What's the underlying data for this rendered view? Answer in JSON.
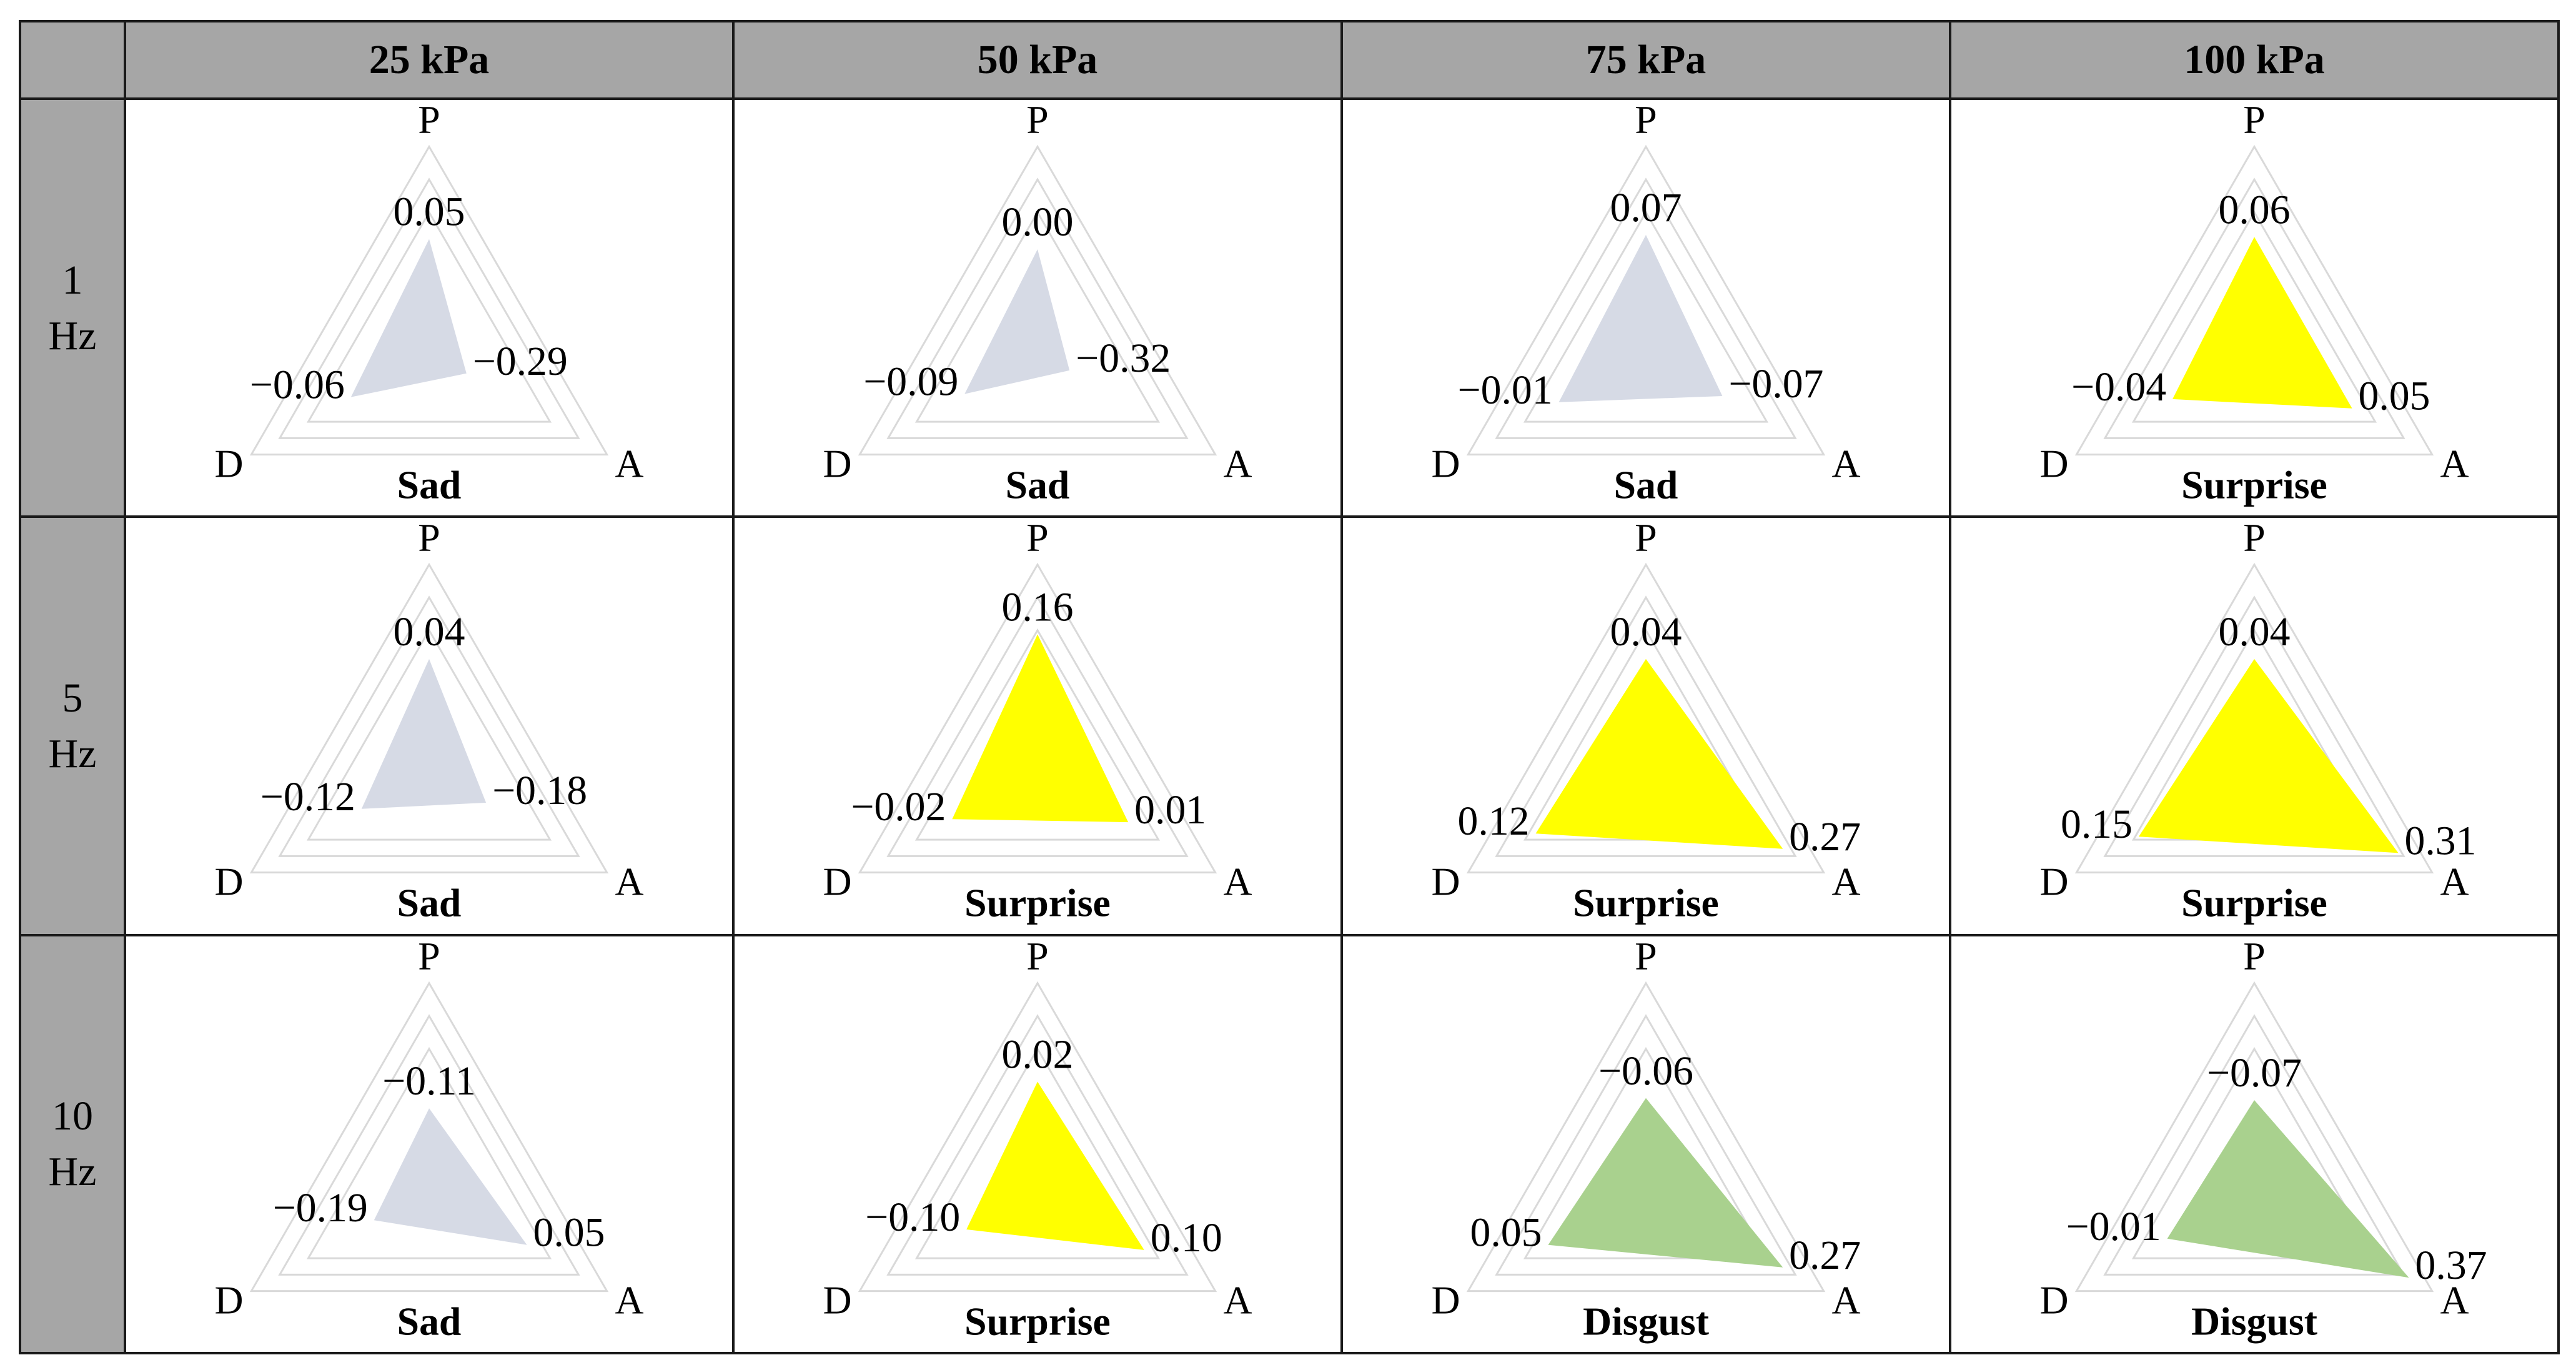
{
  "columns": [
    "25 kPa",
    "50 kPa",
    "75 kPa",
    "100 kPa"
  ],
  "rows": [
    {
      "label_num": "1",
      "label_unit": "Hz"
    },
    {
      "label_num": "5",
      "label_unit": "Hz"
    },
    {
      "label_num": "10",
      "label_unit": "Hz"
    }
  ],
  "axis_labels": {
    "P": "P",
    "A": "A",
    "D": "D"
  },
  "colors": {
    "Sad": "#d6dae5",
    "Surprise": "#ffff00",
    "Disgust": "#a9d18e",
    "grid": "#d9d9d9"
  },
  "chart_data": [
    {
      "type": "radar",
      "row": "1 Hz",
      "column": "25 kPa",
      "emotion": "Sad",
      "axes": [
        "P",
        "A",
        "D"
      ],
      "values": [
        0.05,
        -0.29,
        -0.06
      ],
      "value_labels": [
        "0.05",
        "−0.29",
        "−0.06"
      ]
    },
    {
      "type": "radar",
      "row": "1 Hz",
      "column": "50 kPa",
      "emotion": "Sad",
      "axes": [
        "P",
        "A",
        "D"
      ],
      "values": [
        0.0,
        -0.32,
        -0.09
      ],
      "value_labels": [
        "0.00",
        "−0.32",
        "−0.09"
      ]
    },
    {
      "type": "radar",
      "row": "1 Hz",
      "column": "75 kPa",
      "emotion": "Sad",
      "axes": [
        "P",
        "A",
        "D"
      ],
      "values": [
        0.07,
        -0.07,
        -0.01
      ],
      "value_labels": [
        "0.07",
        "−0.07",
        "−0.01"
      ]
    },
    {
      "type": "radar",
      "row": "1 Hz",
      "column": "100 kPa",
      "emotion": "Surprise",
      "axes": [
        "P",
        "A",
        "D"
      ],
      "values": [
        0.06,
        0.05,
        -0.04
      ],
      "value_labels": [
        "0.06",
        "0.05",
        "−0.04"
      ]
    },
    {
      "type": "radar",
      "row": "5 Hz",
      "column": "25 kPa",
      "emotion": "Sad",
      "axes": [
        "P",
        "A",
        "D"
      ],
      "values": [
        0.04,
        -0.18,
        -0.12
      ],
      "value_labels": [
        "0.04",
        "−0.18",
        "−0.12"
      ]
    },
    {
      "type": "radar",
      "row": "5 Hz",
      "column": "50 kPa",
      "emotion": "Surprise",
      "axes": [
        "P",
        "A",
        "D"
      ],
      "values": [
        0.16,
        0.01,
        -0.02
      ],
      "value_labels": [
        "0.16",
        "0.01",
        "−0.02"
      ]
    },
    {
      "type": "radar",
      "row": "5 Hz",
      "column": "75 kPa",
      "emotion": "Surprise",
      "axes": [
        "P",
        "A",
        "D"
      ],
      "values": [
        0.04,
        0.27,
        0.12
      ],
      "value_labels": [
        "0.04",
        "0.27",
        "0.12"
      ]
    },
    {
      "type": "radar",
      "row": "5 Hz",
      "column": "100 kPa",
      "emotion": "Surprise",
      "axes": [
        "P",
        "A",
        "D"
      ],
      "values": [
        0.04,
        0.31,
        0.15
      ],
      "value_labels": [
        "0.04",
        "0.31",
        "0.15"
      ]
    },
    {
      "type": "radar",
      "row": "10 Hz",
      "column": "25 kPa",
      "emotion": "Sad",
      "axes": [
        "P",
        "A",
        "D"
      ],
      "values": [
        -0.11,
        0.05,
        -0.19
      ],
      "value_labels": [
        "−0.11",
        "0.05",
        "−0.19"
      ]
    },
    {
      "type": "radar",
      "row": "10 Hz",
      "column": "50 kPa",
      "emotion": "Surprise",
      "axes": [
        "P",
        "A",
        "D"
      ],
      "values": [
        0.02,
        0.1,
        -0.1
      ],
      "value_labels": [
        "0.02",
        "0.10",
        "−0.10"
      ]
    },
    {
      "type": "radar",
      "row": "10 Hz",
      "column": "75 kPa",
      "emotion": "Disgust",
      "axes": [
        "P",
        "A",
        "D"
      ],
      "values": [
        -0.06,
        0.27,
        0.05
      ],
      "value_labels": [
        "−0.06",
        "0.27",
        "0.05"
      ]
    },
    {
      "type": "radar",
      "row": "10 Hz",
      "column": "100 kPa",
      "emotion": "Disgust",
      "axes": [
        "P",
        "A",
        "D"
      ],
      "values": [
        -0.07,
        0.37,
        -0.01
      ],
      "value_labels": [
        "−0.07",
        "0.37",
        "−0.01"
      ]
    }
  ]
}
